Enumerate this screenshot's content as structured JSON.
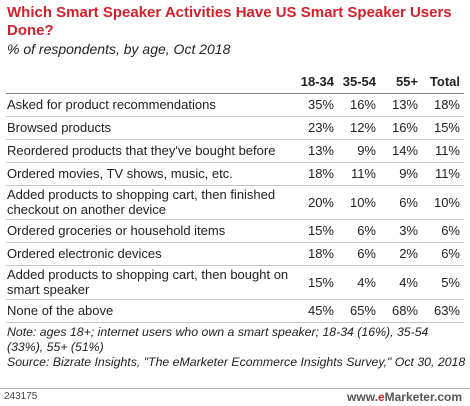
{
  "header": {
    "title": "Which Smart Speaker Activities Have US Smart Speaker Users Done?",
    "subtitle": "% of respondents, by age, Oct 2018"
  },
  "chart_data": {
    "type": "table",
    "columns": [
      "18-34",
      "35-54",
      "55+",
      "Total"
    ],
    "rows": [
      {
        "label": "Asked for product recommendations",
        "values": [
          "35%",
          "16%",
          "13%",
          "18%"
        ]
      },
      {
        "label": "Browsed products",
        "values": [
          "23%",
          "12%",
          "16%",
          "15%"
        ]
      },
      {
        "label": "Reordered products that they've bought before",
        "values": [
          "13%",
          "9%",
          "14%",
          "11%"
        ]
      },
      {
        "label": "Ordered movies, TV shows, music, etc.",
        "values": [
          "18%",
          "11%",
          "9%",
          "11%"
        ]
      },
      {
        "label": "Added products to shopping cart, then finished checkout on another device",
        "values": [
          "20%",
          "10%",
          "6%",
          "10%"
        ]
      },
      {
        "label": "Ordered groceries or household items",
        "values": [
          "15%",
          "6%",
          "3%",
          "6%"
        ]
      },
      {
        "label": "Ordered electronic devices",
        "values": [
          "18%",
          "6%",
          "2%",
          "6%"
        ]
      },
      {
        "label": "Added products to shopping cart, then bought on smart speaker",
        "values": [
          "15%",
          "4%",
          "4%",
          "5%"
        ]
      },
      {
        "label": "None of the above",
        "values": [
          "45%",
          "65%",
          "68%",
          "63%"
        ]
      }
    ]
  },
  "footer": {
    "note": "Note: ages 18+; internet users who own a smart speaker; 18-34 (16%), 35-54 (33%), 55+ (51%)",
    "source": "Source: Bizrate Insights, \"The eMarketer Ecommerce Insights Survey,\" Oct 30, 2018",
    "chart_id": "243175",
    "brand_prefix": "www.",
    "brand_e": "e",
    "brand_rest": "Marketer.com"
  }
}
